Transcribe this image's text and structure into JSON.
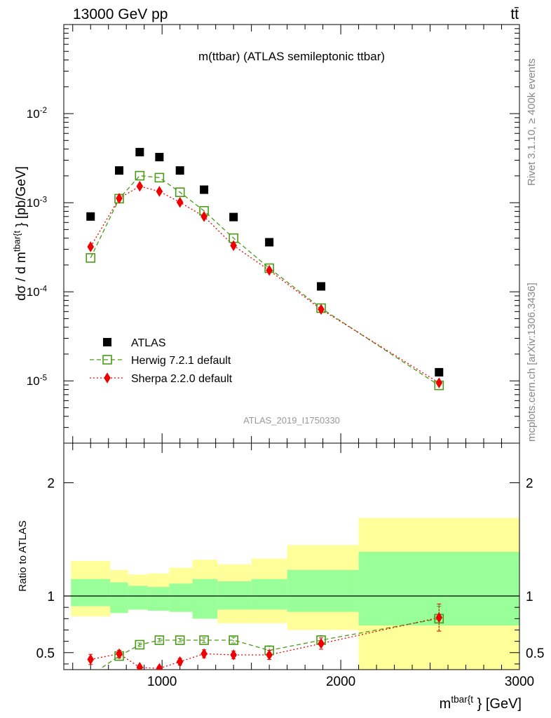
{
  "header": {
    "left": "13000 GeV pp",
    "right": "tt̄"
  },
  "side_labels": {
    "rivet": "Rivet 3.1.10, ≥ 400k events",
    "mcplots": "mcplots.cern.ch [arXiv:1306.3436]"
  },
  "watermark": "ATLAS_2019_I1750330",
  "chart_data": [
    {
      "type": "scatter",
      "title": "m(ttbar) (ATLAS semileptonic ttbar)",
      "ylabel": "dσ / d m^{tbar{t}} [pb/GeV]",
      "yscale": "log",
      "xlim": [
        450,
        3000
      ],
      "ylim": [
        2e-06,
        0.1
      ],
      "ytick_labels": [
        "10^{-5}",
        "10^{-4}",
        "10^{-3}",
        "10^{-2}"
      ],
      "legend": {
        "position": "lower-left",
        "entries": [
          "ATLAS",
          "Herwig 7.2.1 default",
          "Sherpa 2.2.0 default"
        ]
      },
      "series": [
        {
          "name": "ATLAS",
          "color": "#000000",
          "marker": "square-filled",
          "x": [
            600,
            760,
            875,
            985,
            1100,
            1235,
            1400,
            1600,
            1890,
            2550
          ],
          "y": [
            0.0007,
            0.0023,
            0.0037,
            0.00325,
            0.0023,
            0.0014,
            0.00069,
            0.00036,
            0.000115,
            1.25e-05
          ]
        },
        {
          "name": "Herwig 7.2.1 default",
          "color": "#4a9a18",
          "marker": "square-open",
          "line": "dashed",
          "x": [
            600,
            760,
            875,
            985,
            1100,
            1235,
            1400,
            1600,
            1890,
            2550
          ],
          "y": [
            0.00024,
            0.00111,
            0.00201,
            0.00191,
            0.00131,
            0.00081,
            0.0004,
            0.000184,
            6.55e-05,
            8.9e-06
          ]
        },
        {
          "name": "Sherpa 2.2.0 default",
          "color": "#ee0000",
          "marker": "diamond-filled",
          "line": "dotted",
          "x": [
            600,
            760,
            875,
            985,
            1100,
            1235,
            1400,
            1600,
            1890,
            2550
          ],
          "y": [
            0.00032,
            0.00112,
            0.00153,
            0.00134,
            0.00101,
            0.0007,
            0.00033,
            0.000174,
            6.35e-05,
            9.5e-06
          ]
        }
      ]
    },
    {
      "type": "scatter",
      "ylabel": "Ratio to ATLAS",
      "xlabel": "m^{tbar{t}} [GeV]",
      "xlim": [
        450,
        3000
      ],
      "ylim": [
        0.35,
        2.35
      ],
      "xtick_labels": [
        "1000",
        "2000",
        "3000"
      ],
      "ytick_labels": [
        "0.5",
        "1",
        "2"
      ],
      "reference_line": 1,
      "bins": [
        {
          "x0": 490,
          "x1": 710,
          "inner": [
            0.91,
            1.15
          ],
          "outer": [
            0.82,
            1.31
          ]
        },
        {
          "x0": 710,
          "x1": 810,
          "inner": [
            0.85,
            1.12
          ],
          "outer": [
            0.85,
            1.23
          ]
        },
        {
          "x0": 810,
          "x1": 920,
          "inner": [
            0.88,
            1.09
          ],
          "outer": [
            0.88,
            1.19
          ]
        },
        {
          "x0": 920,
          "x1": 1040,
          "inner": [
            0.87,
            1.08
          ],
          "outer": [
            0.87,
            1.2
          ]
        },
        {
          "x0": 1040,
          "x1": 1170,
          "inner": [
            0.86,
            1.11
          ],
          "outer": [
            0.86,
            1.25
          ]
        },
        {
          "x0": 1170,
          "x1": 1310,
          "inner": [
            0.8,
            1.15
          ],
          "outer": [
            0.8,
            1.32
          ]
        },
        {
          "x0": 1310,
          "x1": 1500,
          "inner": [
            0.88,
            1.13
          ],
          "outer": [
            0.76,
            1.28
          ]
        },
        {
          "x0": 1500,
          "x1": 1700,
          "inner": [
            0.88,
            1.15
          ],
          "outer": [
            0.76,
            1.33
          ]
        },
        {
          "x0": 1700,
          "x1": 2100,
          "inner": [
            0.86,
            1.23
          ],
          "outer": [
            0.7,
            1.45
          ]
        },
        {
          "x0": 2100,
          "x1": 3000,
          "inner": [
            0.74,
            1.39
          ],
          "outer": [
            0.35,
            1.69
          ]
        }
      ],
      "series": [
        {
          "name": "Herwig 7.2.1 default",
          "color": "#4a9a18",
          "marker": "square-open",
          "line": "dashed",
          "x": [
            600,
            760,
            875,
            985,
            1100,
            1235,
            1400,
            1600,
            1890,
            2550
          ],
          "y": [
            0.3,
            0.47,
            0.57,
            0.61,
            0.61,
            0.61,
            0.61,
            0.52,
            0.61,
            0.8
          ],
          "err": [
            0,
            0.02,
            0.015,
            0.015,
            0.015,
            0.02,
            0.025,
            0.04,
            0.04,
            0.11
          ]
        },
        {
          "name": "Sherpa 2.2.0 default",
          "color": "#ee0000",
          "marker": "diamond-filled",
          "line": "dotted",
          "x": [
            600,
            760,
            875,
            985,
            1100,
            1235,
            1400,
            1600,
            1890,
            2550
          ],
          "y": [
            0.44,
            0.49,
            0.37,
            0.36,
            0.42,
            0.49,
            0.48,
            0.48,
            0.58,
            0.81
          ],
          "err": [
            0.045,
            0.03,
            0.02,
            0.02,
            0.03,
            0.035,
            0.035,
            0.04,
            0.05,
            0.12
          ]
        }
      ]
    }
  ]
}
